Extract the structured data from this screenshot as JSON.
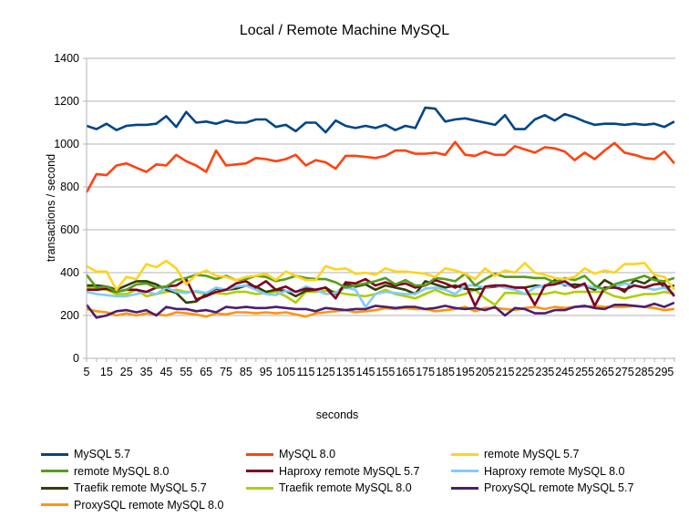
{
  "chart_data": {
    "type": "line",
    "title": "Local / Remote Machine MySQL",
    "xlabel": "seconds",
    "ylabel": "transactions / second",
    "ylim": [
      0,
      1400
    ],
    "yticks": [
      0,
      200,
      400,
      600,
      800,
      1000,
      1200,
      1400
    ],
    "xticks": [
      5,
      15,
      25,
      35,
      45,
      55,
      65,
      75,
      85,
      95,
      105,
      115,
      125,
      135,
      145,
      155,
      165,
      175,
      185,
      195,
      205,
      215,
      225,
      235,
      245,
      255,
      265,
      275,
      285,
      295
    ],
    "grid": "horizontal",
    "legend_position": "bottom",
    "x": [
      5,
      10,
      15,
      20,
      25,
      30,
      35,
      40,
      45,
      50,
      55,
      60,
      65,
      70,
      75,
      80,
      85,
      90,
      95,
      100,
      105,
      110,
      115,
      120,
      125,
      130,
      135,
      140,
      145,
      150,
      155,
      160,
      165,
      170,
      175,
      180,
      185,
      190,
      195,
      200,
      205,
      210,
      215,
      220,
      225,
      230,
      235,
      240,
      245,
      250,
      255,
      260,
      265,
      270,
      275,
      280,
      285,
      290,
      295,
      300
    ],
    "series": [
      {
        "name": "MySQL 5.7",
        "color": "#004586",
        "values": [
          1085,
          1070,
          1095,
          1065,
          1085,
          1090,
          1090,
          1095,
          1130,
          1080,
          1150,
          1100,
          1105,
          1095,
          1110,
          1100,
          1100,
          1115,
          1115,
          1080,
          1090,
          1060,
          1100,
          1100,
          1055,
          1110,
          1085,
          1075,
          1085,
          1075,
          1090,
          1065,
          1085,
          1075,
          1170,
          1165,
          1105,
          1115,
          1120,
          1110,
          1100,
          1090,
          1135,
          1070,
          1070,
          1115,
          1135,
          1110,
          1140,
          1125,
          1105,
          1090,
          1095,
          1095,
          1090,
          1095,
          1090,
          1095,
          1080,
          1105
        ]
      },
      {
        "name": "MySQL 8.0",
        "color": "#ff420e",
        "values": [
          775,
          860,
          855,
          900,
          910,
          890,
          870,
          905,
          900,
          950,
          920,
          900,
          870,
          970,
          900,
          905,
          910,
          935,
          930,
          920,
          930,
          950,
          900,
          925,
          915,
          885,
          945,
          945,
          940,
          935,
          945,
          970,
          970,
          955,
          955,
          960,
          950,
          1010,
          950,
          945,
          965,
          950,
          950,
          990,
          975,
          960,
          985,
          980,
          965,
          925,
          960,
          930,
          970,
          1005,
          960,
          950,
          935,
          930,
          965,
          910
        ]
      },
      {
        "name": "remote MySQL 5.7",
        "color": "#ffd320",
        "values": [
          430,
          405,
          405,
          320,
          380,
          370,
          440,
          425,
          455,
          420,
          345,
          390,
          410,
          385,
          380,
          365,
          380,
          385,
          395,
          365,
          405,
          385,
          365,
          365,
          430,
          415,
          420,
          395,
          400,
          390,
          420,
          405,
          405,
          400,
          395,
          380,
          420,
          410,
          395,
          370,
          420,
          385,
          410,
          400,
          445,
          400,
          390,
          375,
          370,
          380,
          420,
          395,
          410,
          400,
          440,
          440,
          445,
          390,
          380,
          320
        ]
      },
      {
        "name": "remote MySQL 8.0",
        "color": "#579d1c",
        "values": [
          390,
          330,
          335,
          310,
          320,
          345,
          350,
          330,
          335,
          365,
          375,
          390,
          385,
          370,
          385,
          365,
          370,
          385,
          380,
          360,
          370,
          385,
          375,
          370,
          370,
          355,
          330,
          340,
          350,
          360,
          375,
          345,
          365,
          340,
          340,
          375,
          370,
          360,
          395,
          340,
          370,
          395,
          380,
          380,
          380,
          375,
          375,
          355,
          375,
          365,
          385,
          340,
          320,
          345,
          360,
          370,
          385,
          365,
          360,
          375
        ]
      },
      {
        "name": "Haproxy remote MySQL 5.7",
        "color": "#7e0021",
        "values": [
          320,
          320,
          325,
          310,
          320,
          320,
          310,
          330,
          335,
          340,
          370,
          275,
          290,
          310,
          320,
          350,
          360,
          330,
          360,
          320,
          335,
          310,
          325,
          320,
          330,
          280,
          355,
          350,
          370,
          340,
          355,
          340,
          350,
          330,
          340,
          365,
          350,
          330,
          350,
          245,
          335,
          340,
          340,
          330,
          330,
          250,
          340,
          345,
          360,
          330,
          350,
          245,
          330,
          330,
          320,
          340,
          330,
          345,
          350,
          290
        ]
      },
      {
        "name": "Haproxy remote MySQL 8.0",
        "color": "#83caff",
        "values": [
          310,
          300,
          295,
          290,
          290,
          300,
          310,
          300,
          330,
          310,
          305,
          315,
          305,
          330,
          320,
          335,
          340,
          320,
          300,
          295,
          315,
          310,
          335,
          320,
          300,
          305,
          330,
          320,
          240,
          300,
          310,
          305,
          300,
          300,
          325,
          330,
          320,
          300,
          340,
          340,
          330,
          340,
          330,
          320,
          300,
          330,
          340,
          350,
          345,
          330,
          340,
          330,
          325,
          330,
          350,
          340,
          330,
          320,
          330,
          300
        ]
      },
      {
        "name": "Traefik remote MySQL 5.7",
        "color": "#314004",
        "values": [
          340,
          340,
          335,
          320,
          340,
          360,
          360,
          345,
          320,
          305,
          260,
          265,
          300,
          325,
          320,
          325,
          340,
          335,
          310,
          320,
          315,
          290,
          315,
          320,
          330,
          300,
          345,
          335,
          345,
          320,
          340,
          330,
          320,
          300,
          360,
          345,
          330,
          340,
          325,
          320,
          330,
          335,
          340,
          330,
          330,
          340,
          335,
          365,
          340,
          345,
          340,
          320,
          365,
          340,
          310,
          365,
          350,
          380,
          330,
          340
        ]
      },
      {
        "name": "Traefik remote MySQL 8.0",
        "color": "#aecf00",
        "values": [
          330,
          330,
          320,
          300,
          300,
          320,
          290,
          300,
          310,
          320,
          310,
          310,
          300,
          305,
          300,
          310,
          310,
          300,
          305,
          310,
          290,
          260,
          310,
          310,
          315,
          310,
          300,
          295,
          290,
          300,
          320,
          300,
          290,
          280,
          300,
          320,
          300,
          290,
          300,
          320,
          280,
          250,
          305,
          305,
          300,
          300,
          300,
          310,
          300,
          310,
          310,
          310,
          310,
          290,
          280,
          290,
          300,
          300,
          310,
          300
        ]
      },
      {
        "name": "ProxySQL remote MySQL 5.7",
        "color": "#4b1f6f",
        "values": [
          250,
          190,
          200,
          220,
          225,
          215,
          225,
          200,
          240,
          230,
          230,
          220,
          225,
          215,
          240,
          235,
          240,
          235,
          235,
          240,
          235,
          230,
          230,
          220,
          235,
          230,
          225,
          230,
          230,
          245,
          240,
          235,
          240,
          240,
          230,
          235,
          245,
          235,
          230,
          235,
          225,
          240,
          200,
          235,
          230,
          210,
          210,
          225,
          225,
          240,
          245,
          235,
          230,
          250,
          250,
          245,
          240,
          255,
          240,
          260
        ]
      },
      {
        "name": "ProxySQL remote MySQL 8.0",
        "color": "#ff950e",
        "values": [
          230,
          220,
          215,
          200,
          210,
          200,
          210,
          205,
          200,
          215,
          210,
          205,
          195,
          210,
          205,
          215,
          215,
          210,
          215,
          210,
          215,
          205,
          195,
          210,
          215,
          220,
          225,
          215,
          220,
          225,
          235,
          230,
          235,
          230,
          230,
          220,
          225,
          230,
          240,
          220,
          235,
          235,
          230,
          225,
          235,
          240,
          230,
          240,
          235,
          240,
          240,
          245,
          240,
          240,
          240,
          245,
          240,
          235,
          225,
          230
        ]
      }
    ]
  }
}
